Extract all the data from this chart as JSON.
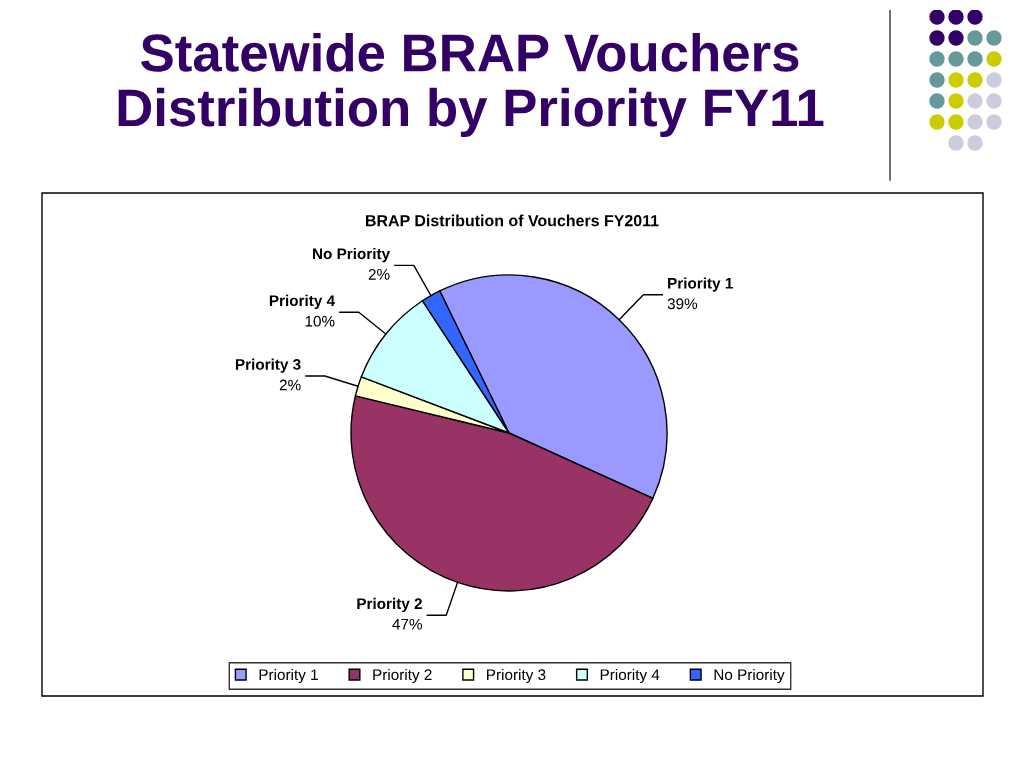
{
  "chart_data": {
    "type": "pie",
    "title": "Statewide BRAP Vouchers Distribution by Priority FY11",
    "subtitle": "BRAP Distribution of Vouchers FY2011",
    "categories": [
      "Priority 1",
      "Priority 2",
      "Priority 3",
      "Priority 4",
      "No Priority"
    ],
    "values": [
      39,
      47,
      2,
      10,
      2
    ],
    "colors": [
      "#9999ff",
      "#993366",
      "#ffffcc",
      "#ccffff",
      "#3366ff"
    ],
    "value_labels": [
      "39%",
      "47%",
      "2%",
      "10%",
      "2%"
    ],
    "legend": "bottom"
  }
}
